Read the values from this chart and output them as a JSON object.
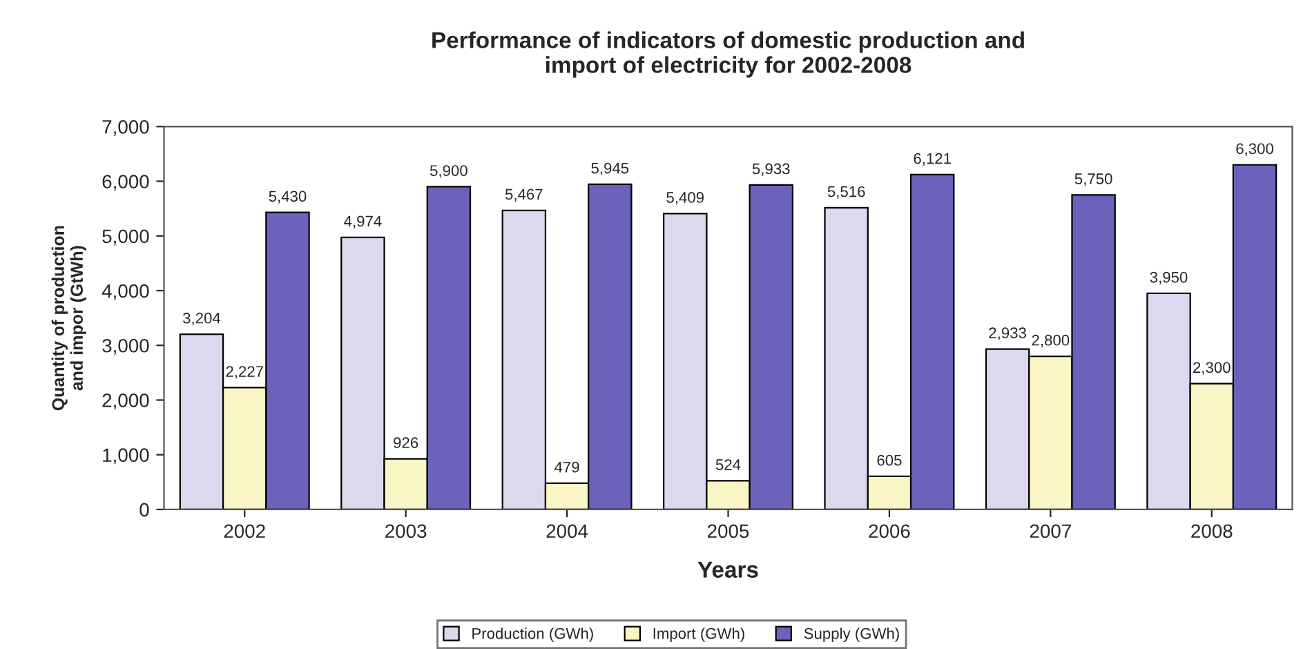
{
  "chart_data": {
    "type": "bar",
    "title": "Performance of indicators of domestic production and\nimport of electricity for 2002-2008",
    "xlabel": "Years",
    "ylabel": "Quantity of production\nand impor (GtWh)",
    "categories": [
      "2002",
      "2003",
      "2004",
      "2005",
      "2006",
      "2007",
      "2008"
    ],
    "series": [
      {
        "name": "Production (GWh)",
        "color": "#dcd8ee",
        "values": [
          3204,
          4974,
          5467,
          5409,
          5516,
          2933,
          3950
        ],
        "value_labels": [
          "3,204",
          "4,974",
          "5,467",
          "5,409",
          "5,516",
          "2,933",
          "3,950"
        ]
      },
      {
        "name": "Import (GWh)",
        "color": "#faf5c4",
        "values": [
          2227,
          926,
          479,
          524,
          605,
          2800,
          2300
        ],
        "value_labels": [
          "2,227",
          "926",
          "479",
          "524",
          "605",
          "2,800",
          "2,300"
        ]
      },
      {
        "name": "Supply (GWh)",
        "color": "#6b62bb",
        "values": [
          5430,
          5900,
          5945,
          5933,
          6121,
          5750,
          6300
        ],
        "value_labels": [
          "5,430",
          "5,900",
          "5,945",
          "5,933",
          "6,121",
          "5,750",
          "6,300"
        ]
      }
    ],
    "ylim": [
      0,
      7000
    ],
    "yticks": [
      0,
      {
        "value": 1000,
        "label": "1,000"
      },
      {
        "value": 2000,
        "label": "2,000"
      },
      {
        "value": 3000,
        "label": "3,000"
      },
      {
        "value": 4000,
        "label": "4,000"
      },
      {
        "value": 5000,
        "label": "5,000"
      },
      {
        "value": 6000,
        "label": "6,000"
      },
      {
        "value": 7000,
        "label": "7,000"
      }
    ],
    "grid": false,
    "legend": "bottom"
  }
}
